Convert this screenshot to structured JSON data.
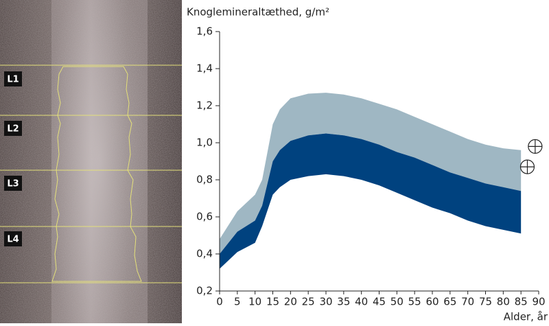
{
  "image": {
    "labels": [
      "L1",
      "L2",
      "L3",
      "L4"
    ]
  },
  "chart_data": {
    "type": "band",
    "y_label": "Knoglemineraltæthed, g/m²",
    "x_label": "Alder, år",
    "x": [
      0,
      5,
      10,
      12,
      15,
      17,
      20,
      25,
      30,
      35,
      40,
      45,
      50,
      55,
      60,
      65,
      70,
      75,
      80,
      85
    ],
    "series": [
      {
        "color": "#9fb7c3",
        "values": [
          0.48,
          0.63,
          0.72,
          0.8,
          1.1,
          1.18,
          1.24,
          1.265,
          1.27,
          1.26,
          1.24,
          1.21,
          1.18,
          1.14,
          1.1,
          1.06,
          1.02,
          0.99,
          0.97,
          0.96
        ]
      },
      {
        "color": "#00427f",
        "values": [
          0.4,
          0.52,
          0.58,
          0.66,
          0.9,
          0.96,
          1.01,
          1.04,
          1.05,
          1.04,
          1.02,
          0.99,
          0.95,
          0.92,
          0.88,
          0.84,
          0.81,
          0.78,
          0.76,
          0.74
        ]
      },
      {
        "values": [
          0.32,
          0.41,
          0.46,
          0.55,
          0.72,
          0.76,
          0.8,
          0.82,
          0.83,
          0.82,
          0.8,
          0.77,
          0.73,
          0.69,
          0.65,
          0.62,
          0.58,
          0.55,
          0.53,
          0.51
        ]
      }
    ],
    "points": {
      "x": [
        89,
        86.8
      ],
      "y": [
        0.98,
        0.87
      ]
    },
    "xlim": [
      0,
      90
    ],
    "ylim": [
      0.2,
      1.6
    ],
    "xticks": [
      0,
      5,
      10,
      15,
      20,
      25,
      30,
      35,
      40,
      45,
      50,
      55,
      60,
      65,
      70,
      75,
      80,
      85,
      90
    ],
    "yticks": [
      {
        "value": 0.2,
        "label": "0,2"
      },
      {
        "value": 0.4,
        "label": "0,4"
      },
      {
        "value": 0.6,
        "label": "0,6"
      },
      {
        "value": 0.8,
        "label": "0,8"
      },
      {
        "value": 1.0,
        "label": "1,0"
      },
      {
        "value": 1.2,
        "label": "1,2"
      },
      {
        "value": 1.4,
        "label": "1,4"
      },
      {
        "value": 1.6,
        "label": "1,6"
      }
    ]
  }
}
